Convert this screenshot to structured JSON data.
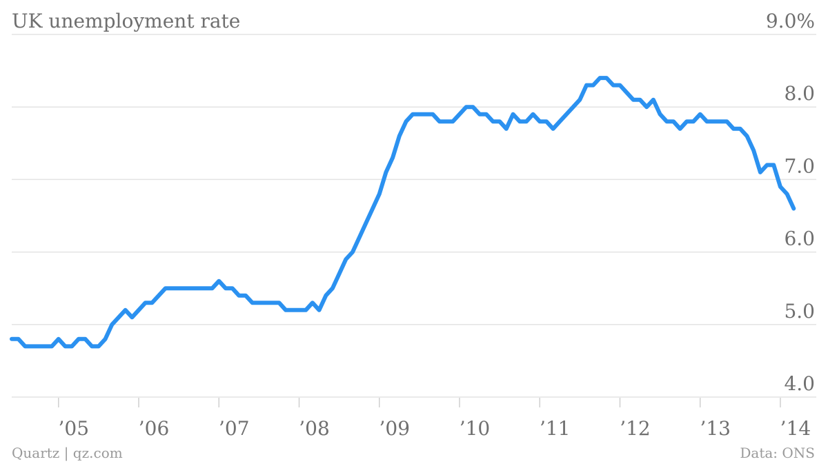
{
  "chart_data": {
    "type": "line",
    "title": "UK unemployment rate",
    "y_unit_suffix": "%",
    "ylim": [
      4.0,
      9.0
    ],
    "y_ticks": [
      {
        "value": 9.0,
        "label": "9.0%"
      },
      {
        "value": 8.0,
        "label": "8.0"
      },
      {
        "value": 7.0,
        "label": "7.0"
      },
      {
        "value": 6.0,
        "label": "6.0"
      },
      {
        "value": 5.0,
        "label": "5.0"
      },
      {
        "value": 4.0,
        "label": "4.0"
      }
    ],
    "x_ticks": [
      {
        "value": "2005-01",
        "label": "’05"
      },
      {
        "value": "2006-01",
        "label": "’06"
      },
      {
        "value": "2007-01",
        "label": "’07"
      },
      {
        "value": "2008-01",
        "label": "’08"
      },
      {
        "value": "2009-01",
        "label": "’09"
      },
      {
        "value": "2010-01",
        "label": "’10"
      },
      {
        "value": "2011-01",
        "label": "’11"
      },
      {
        "value": "2012-01",
        "label": "’12"
      },
      {
        "value": "2013-01",
        "label": "’13"
      },
      {
        "value": "2014-01",
        "label": "’14"
      }
    ],
    "xlim": [
      "2004-06",
      "2014-04"
    ],
    "grid": true,
    "line_color": "#2b91f0",
    "series": [
      {
        "values": [
          {
            "x": "2004-06",
            "y": 4.8
          },
          {
            "x": "2004-07",
            "y": 4.8
          },
          {
            "x": "2004-08",
            "y": 4.7
          },
          {
            "x": "2004-09",
            "y": 4.7
          },
          {
            "x": "2004-10",
            "y": 4.7
          },
          {
            "x": "2004-11",
            "y": 4.7
          },
          {
            "x": "2004-12",
            "y": 4.7
          },
          {
            "x": "2005-01",
            "y": 4.8
          },
          {
            "x": "2005-02",
            "y": 4.7
          },
          {
            "x": "2005-03",
            "y": 4.7
          },
          {
            "x": "2005-04",
            "y": 4.8
          },
          {
            "x": "2005-05",
            "y": 4.8
          },
          {
            "x": "2005-06",
            "y": 4.7
          },
          {
            "x": "2005-07",
            "y": 4.7
          },
          {
            "x": "2005-08",
            "y": 4.8
          },
          {
            "x": "2005-09",
            "y": 5.0
          },
          {
            "x": "2005-10",
            "y": 5.1
          },
          {
            "x": "2005-11",
            "y": 5.2
          },
          {
            "x": "2005-12",
            "y": 5.1
          },
          {
            "x": "2006-01",
            "y": 5.2
          },
          {
            "x": "2006-02",
            "y": 5.3
          },
          {
            "x": "2006-03",
            "y": 5.3
          },
          {
            "x": "2006-04",
            "y": 5.4
          },
          {
            "x": "2006-05",
            "y": 5.5
          },
          {
            "x": "2006-06",
            "y": 5.5
          },
          {
            "x": "2006-07",
            "y": 5.5
          },
          {
            "x": "2006-08",
            "y": 5.5
          },
          {
            "x": "2006-09",
            "y": 5.5
          },
          {
            "x": "2006-10",
            "y": 5.5
          },
          {
            "x": "2006-11",
            "y": 5.5
          },
          {
            "x": "2006-12",
            "y": 5.5
          },
          {
            "x": "2007-01",
            "y": 5.6
          },
          {
            "x": "2007-02",
            "y": 5.5
          },
          {
            "x": "2007-03",
            "y": 5.5
          },
          {
            "x": "2007-04",
            "y": 5.4
          },
          {
            "x": "2007-05",
            "y": 5.4
          },
          {
            "x": "2007-06",
            "y": 5.3
          },
          {
            "x": "2007-07",
            "y": 5.3
          },
          {
            "x": "2007-08",
            "y": 5.3
          },
          {
            "x": "2007-09",
            "y": 5.3
          },
          {
            "x": "2007-10",
            "y": 5.3
          },
          {
            "x": "2007-11",
            "y": 5.2
          },
          {
            "x": "2007-12",
            "y": 5.2
          },
          {
            "x": "2008-01",
            "y": 5.2
          },
          {
            "x": "2008-02",
            "y": 5.2
          },
          {
            "x": "2008-03",
            "y": 5.3
          },
          {
            "x": "2008-04",
            "y": 5.2
          },
          {
            "x": "2008-05",
            "y": 5.4
          },
          {
            "x": "2008-06",
            "y": 5.5
          },
          {
            "x": "2008-07",
            "y": 5.7
          },
          {
            "x": "2008-08",
            "y": 5.9
          },
          {
            "x": "2008-09",
            "y": 6.0
          },
          {
            "x": "2008-10",
            "y": 6.2
          },
          {
            "x": "2008-11",
            "y": 6.4
          },
          {
            "x": "2008-12",
            "y": 6.6
          },
          {
            "x": "2009-01",
            "y": 6.8
          },
          {
            "x": "2009-02",
            "y": 7.1
          },
          {
            "x": "2009-03",
            "y": 7.3
          },
          {
            "x": "2009-04",
            "y": 7.6
          },
          {
            "x": "2009-05",
            "y": 7.8
          },
          {
            "x": "2009-06",
            "y": 7.9
          },
          {
            "x": "2009-07",
            "y": 7.9
          },
          {
            "x": "2009-08",
            "y": 7.9
          },
          {
            "x": "2009-09",
            "y": 7.9
          },
          {
            "x": "2009-10",
            "y": 7.8
          },
          {
            "x": "2009-11",
            "y": 7.8
          },
          {
            "x": "2009-12",
            "y": 7.8
          },
          {
            "x": "2010-01",
            "y": 7.9
          },
          {
            "x": "2010-02",
            "y": 8.0
          },
          {
            "x": "2010-03",
            "y": 8.0
          },
          {
            "x": "2010-04",
            "y": 7.9
          },
          {
            "x": "2010-05",
            "y": 7.9
          },
          {
            "x": "2010-06",
            "y": 7.8
          },
          {
            "x": "2010-07",
            "y": 7.8
          },
          {
            "x": "2010-08",
            "y": 7.7
          },
          {
            "x": "2010-09",
            "y": 7.9
          },
          {
            "x": "2010-10",
            "y": 7.8
          },
          {
            "x": "2010-11",
            "y": 7.8
          },
          {
            "x": "2010-12",
            "y": 7.9
          },
          {
            "x": "2011-01",
            "y": 7.8
          },
          {
            "x": "2011-02",
            "y": 7.8
          },
          {
            "x": "2011-03",
            "y": 7.7
          },
          {
            "x": "2011-04",
            "y": 7.8
          },
          {
            "x": "2011-05",
            "y": 7.9
          },
          {
            "x": "2011-06",
            "y": 8.0
          },
          {
            "x": "2011-07",
            "y": 8.1
          },
          {
            "x": "2011-08",
            "y": 8.3
          },
          {
            "x": "2011-09",
            "y": 8.3
          },
          {
            "x": "2011-10",
            "y": 8.4
          },
          {
            "x": "2011-11",
            "y": 8.4
          },
          {
            "x": "2011-12",
            "y": 8.3
          },
          {
            "x": "2012-01",
            "y": 8.3
          },
          {
            "x": "2012-02",
            "y": 8.2
          },
          {
            "x": "2012-03",
            "y": 8.1
          },
          {
            "x": "2012-04",
            "y": 8.1
          },
          {
            "x": "2012-05",
            "y": 8.0
          },
          {
            "x": "2012-06",
            "y": 8.1
          },
          {
            "x": "2012-07",
            "y": 7.9
          },
          {
            "x": "2012-08",
            "y": 7.8
          },
          {
            "x": "2012-09",
            "y": 7.8
          },
          {
            "x": "2012-10",
            "y": 7.7
          },
          {
            "x": "2012-11",
            "y": 7.8
          },
          {
            "x": "2012-12",
            "y": 7.8
          },
          {
            "x": "2013-01",
            "y": 7.9
          },
          {
            "x": "2013-02",
            "y": 7.8
          },
          {
            "x": "2013-03",
            "y": 7.8
          },
          {
            "x": "2013-04",
            "y": 7.8
          },
          {
            "x": "2013-05",
            "y": 7.8
          },
          {
            "x": "2013-06",
            "y": 7.7
          },
          {
            "x": "2013-07",
            "y": 7.7
          },
          {
            "x": "2013-08",
            "y": 7.6
          },
          {
            "x": "2013-09",
            "y": 7.4
          },
          {
            "x": "2013-10",
            "y": 7.1
          },
          {
            "x": "2013-11",
            "y": 7.2
          },
          {
            "x": "2013-12",
            "y": 7.2
          },
          {
            "x": "2014-01",
            "y": 6.9
          },
          {
            "x": "2014-02",
            "y": 6.8
          },
          {
            "x": "2014-03",
            "y": 6.6
          }
        ]
      }
    ]
  },
  "footer": {
    "credit": "Quartz | qz.com",
    "source": "Data: ONS"
  }
}
